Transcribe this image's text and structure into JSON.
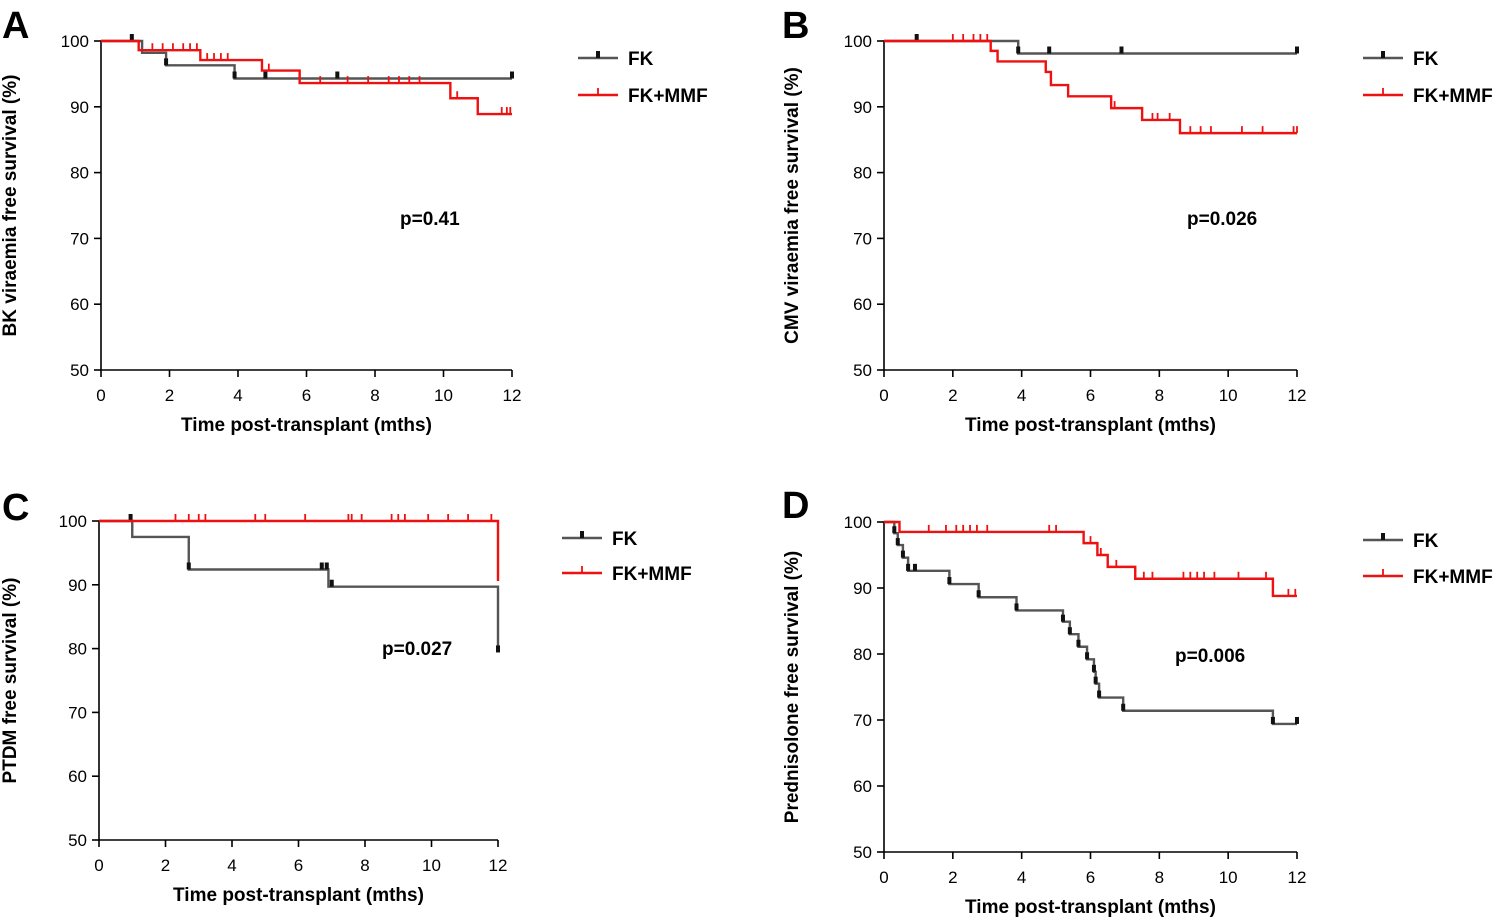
{
  "chart_data": [
    {
      "type": "line",
      "subtype": "kaplan-meier",
      "panel": "A",
      "title": "",
      "xlabel": "Time post-transplant (mths)",
      "ylabel": "BK viraemia free survival (%)",
      "xlim": [
        0,
        12
      ],
      "ylim": [
        50,
        100
      ],
      "xticks": [
        0,
        2,
        4,
        6,
        8,
        10,
        12
      ],
      "yticks": [
        50,
        60,
        70,
        80,
        90,
        100
      ],
      "annotation": "p=0.41",
      "legend": [
        "FK",
        "FK+MMF"
      ],
      "series": [
        {
          "name": "FK",
          "color": "#555555",
          "steps": [
            [
              0,
              100
            ],
            [
              1.2,
              98.2
            ],
            [
              1.9,
              96.3
            ],
            [
              3.9,
              94.3
            ],
            [
              12,
              94.3
            ]
          ],
          "censors": [
            [
              0.9,
              100
            ],
            [
              1.9,
              96.3
            ],
            [
              3.9,
              94.3
            ],
            [
              4.8,
              94.3
            ],
            [
              6.9,
              94.3
            ],
            [
              12,
              94.3
            ]
          ]
        },
        {
          "name": "FK+MMF",
          "color": "#ee1111",
          "steps": [
            [
              0,
              100
            ],
            [
              1.1,
              98.6
            ],
            [
              2.9,
              97.1
            ],
            [
              4.7,
              95.5
            ],
            [
              5.8,
              93.6
            ],
            [
              10.2,
              91.3
            ],
            [
              11,
              88.9
            ],
            [
              12,
              88.9
            ]
          ],
          "censors": [
            [
              1.5,
              98.6
            ],
            [
              1.8,
              98.6
            ],
            [
              2.1,
              98.6
            ],
            [
              2.4,
              98.6
            ],
            [
              2.6,
              98.6
            ],
            [
              2.8,
              98.6
            ],
            [
              3.1,
              97.1
            ],
            [
              3.3,
              97.1
            ],
            [
              3.5,
              97.1
            ],
            [
              3.7,
              97.1
            ],
            [
              4.9,
              95.5
            ],
            [
              6.4,
              93.6
            ],
            [
              7.2,
              93.6
            ],
            [
              7.8,
              93.6
            ],
            [
              8.4,
              93.6
            ],
            [
              8.7,
              93.6
            ],
            [
              9.0,
              93.6
            ],
            [
              9.3,
              93.6
            ],
            [
              10.4,
              91.3
            ],
            [
              11.7,
              88.9
            ],
            [
              11.85,
              88.9
            ],
            [
              11.95,
              88.9
            ]
          ]
        }
      ]
    },
    {
      "type": "line",
      "subtype": "kaplan-meier",
      "panel": "B",
      "title": "",
      "xlabel": "Time post-transplant (mths)",
      "ylabel": "CMV viraemia free survival (%)",
      "xlim": [
        0,
        12
      ],
      "ylim": [
        50,
        100
      ],
      "xticks": [
        0,
        2,
        4,
        6,
        8,
        10,
        12
      ],
      "yticks": [
        50,
        60,
        70,
        80,
        90,
        100
      ],
      "annotation": "p=0.026",
      "legend": [
        "FK",
        "FK+MMF"
      ],
      "series": [
        {
          "name": "FK",
          "color": "#555555",
          "steps": [
            [
              0,
              100
            ],
            [
              3.9,
              98.1
            ],
            [
              12,
              98.1
            ]
          ],
          "censors": [
            [
              0.95,
              100
            ],
            [
              3.9,
              98.1
            ],
            [
              4.8,
              98.1
            ],
            [
              6.9,
              98.1
            ],
            [
              12,
              98.1
            ]
          ]
        },
        {
          "name": "FK+MMF",
          "color": "#ee1111",
          "steps": [
            [
              0,
              100
            ],
            [
              3.1,
              98.5
            ],
            [
              3.3,
              96.9
            ],
            [
              4.7,
              95.3
            ],
            [
              4.85,
              93.3
            ],
            [
              5.35,
              91.6
            ],
            [
              6.6,
              89.8
            ],
            [
              7.5,
              88.0
            ],
            [
              8.6,
              86.0
            ],
            [
              12,
              86.0
            ]
          ],
          "censors": [
            [
              2.0,
              100
            ],
            [
              2.3,
              100
            ],
            [
              2.6,
              100
            ],
            [
              2.8,
              100
            ],
            [
              3.0,
              100
            ],
            [
              6.7,
              89.8
            ],
            [
              7.8,
              88.0
            ],
            [
              7.95,
              88.0
            ],
            [
              8.3,
              88.0
            ],
            [
              8.9,
              86.0
            ],
            [
              9.2,
              86.0
            ],
            [
              9.5,
              86.0
            ],
            [
              10.4,
              86.0
            ],
            [
              11.0,
              86.0
            ],
            [
              11.9,
              86.0
            ],
            [
              12,
              86.0
            ]
          ]
        }
      ]
    },
    {
      "type": "line",
      "subtype": "kaplan-meier",
      "panel": "C",
      "title": "",
      "xlabel": "Time post-transplant (mths)",
      "ylabel": "PTDM free survival (%)",
      "xlim": [
        0,
        12
      ],
      "ylim": [
        50,
        100
      ],
      "xticks": [
        0,
        2,
        4,
        6,
        8,
        10,
        12
      ],
      "yticks": [
        50,
        60,
        70,
        80,
        90,
        100
      ],
      "annotation": "p=0.027",
      "legend": [
        "FK",
        "FK+MMF"
      ],
      "series": [
        {
          "name": "FK",
          "color": "#555555",
          "steps": [
            [
              0,
              100
            ],
            [
              1.0,
              97.5
            ],
            [
              2.7,
              92.4
            ],
            [
              6.9,
              89.7
            ],
            [
              12,
              79.4
            ]
          ],
          "censors": [
            [
              0.95,
              100
            ],
            [
              2.7,
              92.4
            ],
            [
              6.7,
              92.4
            ],
            [
              6.85,
              92.4
            ],
            [
              7.0,
              89.7
            ],
            [
              12,
              79.4
            ]
          ]
        },
        {
          "name": "FK+MMF",
          "color": "#ee1111",
          "steps": [
            [
              0,
              100
            ],
            [
              12,
              90.6
            ]
          ],
          "censors": [
            [
              2.3,
              100
            ],
            [
              2.7,
              100
            ],
            [
              3.0,
              100
            ],
            [
              3.2,
              100
            ],
            [
              4.7,
              100
            ],
            [
              5.0,
              100
            ],
            [
              6.2,
              100
            ],
            [
              7.5,
              100
            ],
            [
              7.6,
              100
            ],
            [
              7.9,
              100
            ],
            [
              8.8,
              100
            ],
            [
              9.0,
              100
            ],
            [
              9.2,
              100
            ],
            [
              9.9,
              100
            ],
            [
              10.5,
              100
            ],
            [
              11.1,
              100
            ],
            [
              11.8,
              100
            ]
          ]
        }
      ]
    },
    {
      "type": "line",
      "subtype": "kaplan-meier",
      "panel": "D",
      "title": "",
      "xlabel": "Time post-transplant (mths)",
      "ylabel": "Prednisolone free survival (%)",
      "xlim": [
        0,
        12
      ],
      "ylim": [
        50,
        100
      ],
      "xticks": [
        0,
        2,
        4,
        6,
        8,
        10,
        12
      ],
      "yticks": [
        50,
        60,
        70,
        80,
        90,
        100
      ],
      "annotation": "p=0.006",
      "legend": [
        "FK",
        "FK+MMF"
      ],
      "series": [
        {
          "name": "FK",
          "color": "#555555",
          "steps": [
            [
              0,
              100
            ],
            [
              0.3,
              98.3
            ],
            [
              0.4,
              96.5
            ],
            [
              0.55,
              94.6
            ],
            [
              0.7,
              92.6
            ],
            [
              1.9,
              90.6
            ],
            [
              2.75,
              88.6
            ],
            [
              3.85,
              86.6
            ],
            [
              5.2,
              84.9
            ],
            [
              5.4,
              83.0
            ],
            [
              5.65,
              81.1
            ],
            [
              5.9,
              79.2
            ],
            [
              6.1,
              77.3
            ],
            [
              6.15,
              75.5
            ],
            [
              6.25,
              73.4
            ],
            [
              6.95,
              71.4
            ],
            [
              11.3,
              69.4
            ],
            [
              12,
              69.4
            ]
          ],
          "censors": [
            [
              0.3,
              98.3
            ],
            [
              0.4,
              96.5
            ],
            [
              0.55,
              94.6
            ],
            [
              0.7,
              92.6
            ],
            [
              0.9,
              92.6
            ],
            [
              1.9,
              90.6
            ],
            [
              2.75,
              88.6
            ],
            [
              3.85,
              86.6
            ],
            [
              5.2,
              84.9
            ],
            [
              5.4,
              83.0
            ],
            [
              5.65,
              81.1
            ],
            [
              5.9,
              79.2
            ],
            [
              6.1,
              77.3
            ],
            [
              6.15,
              75.5
            ],
            [
              6.25,
              73.4
            ],
            [
              6.95,
              71.4
            ],
            [
              11.3,
              69.4
            ],
            [
              12,
              69.4
            ]
          ]
        },
        {
          "name": "FK+MMF",
          "color": "#ee1111",
          "steps": [
            [
              0,
              100
            ],
            [
              0.45,
              98.5
            ],
            [
              5.8,
              96.8
            ],
            [
              6.2,
              95.0
            ],
            [
              6.5,
              93.2
            ],
            [
              7.3,
              91.4
            ],
            [
              11.3,
              88.8
            ],
            [
              12,
              88.8
            ]
          ],
          "censors": [
            [
              1.3,
              98.5
            ],
            [
              1.8,
              98.5
            ],
            [
              2.1,
              98.5
            ],
            [
              2.3,
              98.5
            ],
            [
              2.5,
              98.5
            ],
            [
              2.7,
              98.5
            ],
            [
              3.0,
              98.5
            ],
            [
              4.8,
              98.5
            ],
            [
              5.0,
              98.5
            ],
            [
              6.0,
              96.8
            ],
            [
              6.3,
              95.0
            ],
            [
              6.75,
              93.2
            ],
            [
              7.55,
              91.4
            ],
            [
              7.8,
              91.4
            ],
            [
              8.7,
              91.4
            ],
            [
              8.9,
              91.4
            ],
            [
              9.1,
              91.4
            ],
            [
              9.3,
              91.4
            ],
            [
              9.6,
              91.4
            ],
            [
              10.3,
              91.4
            ],
            [
              11.1,
              91.4
            ],
            [
              11.75,
              88.8
            ],
            [
              11.95,
              88.8
            ]
          ]
        }
      ]
    }
  ]
}
